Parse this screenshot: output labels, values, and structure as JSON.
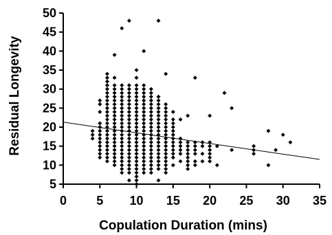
{
  "chart_data": {
    "type": "scatter",
    "title": "",
    "xlabel": "Copulation Duration (mins)",
    "ylabel": "Residual Longevity",
    "xlim": [
      0,
      35
    ],
    "ylim": [
      5,
      50
    ],
    "x_ticks": [
      0,
      5,
      10,
      15,
      20,
      25,
      30,
      35
    ],
    "y_ticks": [
      5,
      10,
      15,
      20,
      25,
      30,
      35,
      40,
      45,
      50
    ],
    "grid": false,
    "legend": "none",
    "point_color": "#000000",
    "trendline": {
      "type": "linear",
      "points": [
        [
          0,
          21.3
        ],
        [
          35,
          11.5
        ]
      ]
    },
    "points": [
      [
        4,
        17
      ],
      [
        4,
        18
      ],
      [
        4,
        19
      ],
      [
        5,
        12
      ],
      [
        5,
        13
      ],
      [
        5,
        14
      ],
      [
        5,
        15
      ],
      [
        5,
        16
      ],
      [
        5,
        17
      ],
      [
        5,
        18
      ],
      [
        5,
        19
      ],
      [
        5,
        20
      ],
      [
        5,
        21
      ],
      [
        5,
        24
      ],
      [
        5,
        26
      ],
      [
        5,
        27
      ],
      [
        6,
        11
      ],
      [
        6,
        12
      ],
      [
        6,
        13
      ],
      [
        6,
        14
      ],
      [
        6,
        15
      ],
      [
        6,
        16
      ],
      [
        6,
        17
      ],
      [
        6,
        18
      ],
      [
        6,
        19
      ],
      [
        6,
        20
      ],
      [
        6,
        21
      ],
      [
        6,
        22
      ],
      [
        6,
        23
      ],
      [
        6,
        24
      ],
      [
        6,
        25
      ],
      [
        6,
        26
      ],
      [
        6,
        27
      ],
      [
        6,
        28
      ],
      [
        6,
        29
      ],
      [
        6,
        30
      ],
      [
        6,
        31
      ],
      [
        6,
        32
      ],
      [
        6,
        33
      ],
      [
        6,
        34
      ],
      [
        7,
        10
      ],
      [
        7,
        11
      ],
      [
        7,
        12
      ],
      [
        7,
        13
      ],
      [
        7,
        14
      ],
      [
        7,
        15
      ],
      [
        7,
        16
      ],
      [
        7,
        17
      ],
      [
        7,
        18
      ],
      [
        7,
        19
      ],
      [
        7,
        20
      ],
      [
        7,
        21
      ],
      [
        7,
        22
      ],
      [
        7,
        23
      ],
      [
        7,
        24
      ],
      [
        7,
        25
      ],
      [
        7,
        26
      ],
      [
        7,
        27
      ],
      [
        7,
        28
      ],
      [
        7,
        29
      ],
      [
        7,
        30
      ],
      [
        7,
        31
      ],
      [
        7,
        33
      ],
      [
        7,
        39
      ],
      [
        8,
        8
      ],
      [
        8,
        9
      ],
      [
        8,
        10
      ],
      [
        8,
        11
      ],
      [
        8,
        12
      ],
      [
        8,
        13
      ],
      [
        8,
        14
      ],
      [
        8,
        15
      ],
      [
        8,
        16
      ],
      [
        8,
        17
      ],
      [
        8,
        18
      ],
      [
        8,
        19
      ],
      [
        8,
        20
      ],
      [
        8,
        21
      ],
      [
        8,
        22
      ],
      [
        8,
        23
      ],
      [
        8,
        24
      ],
      [
        8,
        25
      ],
      [
        8,
        26
      ],
      [
        8,
        27
      ],
      [
        8,
        28
      ],
      [
        8,
        29
      ],
      [
        8,
        30
      ],
      [
        8,
        31
      ],
      [
        8,
        46
      ],
      [
        9,
        6
      ],
      [
        9,
        8
      ],
      [
        9,
        9
      ],
      [
        9,
        10
      ],
      [
        9,
        11
      ],
      [
        9,
        12
      ],
      [
        9,
        13
      ],
      [
        9,
        14
      ],
      [
        9,
        15
      ],
      [
        9,
        16
      ],
      [
        9,
        17
      ],
      [
        9,
        18
      ],
      [
        9,
        19
      ],
      [
        9,
        20
      ],
      [
        9,
        21
      ],
      [
        9,
        22
      ],
      [
        9,
        23
      ],
      [
        9,
        24
      ],
      [
        9,
        25
      ],
      [
        9,
        26
      ],
      [
        9,
        27
      ],
      [
        9,
        28
      ],
      [
        9,
        29
      ],
      [
        9,
        30
      ],
      [
        9,
        31
      ],
      [
        9,
        48
      ],
      [
        10,
        5
      ],
      [
        10,
        6
      ],
      [
        10,
        7
      ],
      [
        10,
        8
      ],
      [
        10,
        9
      ],
      [
        10,
        10
      ],
      [
        10,
        11
      ],
      [
        10,
        12
      ],
      [
        10,
        13
      ],
      [
        10,
        14
      ],
      [
        10,
        15
      ],
      [
        10,
        16
      ],
      [
        10,
        17
      ],
      [
        10,
        18
      ],
      [
        10,
        19
      ],
      [
        10,
        20
      ],
      [
        10,
        21
      ],
      [
        10,
        22
      ],
      [
        10,
        23
      ],
      [
        10,
        24
      ],
      [
        10,
        25
      ],
      [
        10,
        26
      ],
      [
        10,
        27
      ],
      [
        10,
        28
      ],
      [
        10,
        29
      ],
      [
        10,
        30
      ],
      [
        10,
        31
      ],
      [
        10,
        33
      ],
      [
        10,
        35
      ],
      [
        11,
        8
      ],
      [
        11,
        9
      ],
      [
        11,
        10
      ],
      [
        11,
        11
      ],
      [
        11,
        12
      ],
      [
        11,
        13
      ],
      [
        11,
        14
      ],
      [
        11,
        15
      ],
      [
        11,
        16
      ],
      [
        11,
        17
      ],
      [
        11,
        18
      ],
      [
        11,
        19
      ],
      [
        11,
        20
      ],
      [
        11,
        21
      ],
      [
        11,
        22
      ],
      [
        11,
        23
      ],
      [
        11,
        24
      ],
      [
        11,
        25
      ],
      [
        11,
        26
      ],
      [
        11,
        27
      ],
      [
        11,
        28
      ],
      [
        11,
        29
      ],
      [
        11,
        30
      ],
      [
        11,
        31
      ],
      [
        11,
        40
      ],
      [
        12,
        8
      ],
      [
        12,
        9
      ],
      [
        12,
        10
      ],
      [
        12,
        11
      ],
      [
        12,
        12
      ],
      [
        12,
        13
      ],
      [
        12,
        14
      ],
      [
        12,
        15
      ],
      [
        12,
        16
      ],
      [
        12,
        17
      ],
      [
        12,
        18
      ],
      [
        12,
        19
      ],
      [
        12,
        20
      ],
      [
        12,
        21
      ],
      [
        12,
        22
      ],
      [
        12,
        23
      ],
      [
        12,
        24
      ],
      [
        12,
        25
      ],
      [
        12,
        26
      ],
      [
        12,
        27
      ],
      [
        12,
        28
      ],
      [
        12,
        29
      ],
      [
        12,
        30
      ],
      [
        13,
        6
      ],
      [
        13,
        9
      ],
      [
        13,
        10
      ],
      [
        13,
        11
      ],
      [
        13,
        12
      ],
      [
        13,
        13
      ],
      [
        13,
        14
      ],
      [
        13,
        15
      ],
      [
        13,
        16
      ],
      [
        13,
        17
      ],
      [
        13,
        18
      ],
      [
        13,
        19
      ],
      [
        13,
        20
      ],
      [
        13,
        21
      ],
      [
        13,
        22
      ],
      [
        13,
        23
      ],
      [
        13,
        24
      ],
      [
        13,
        25
      ],
      [
        13,
        26
      ],
      [
        13,
        27
      ],
      [
        13,
        28
      ],
      [
        13,
        48
      ],
      [
        14,
        8
      ],
      [
        14,
        9
      ],
      [
        14,
        10
      ],
      [
        14,
        11
      ],
      [
        14,
        12
      ],
      [
        14,
        13
      ],
      [
        14,
        14
      ],
      [
        14,
        15
      ],
      [
        14,
        16
      ],
      [
        14,
        17
      ],
      [
        14,
        18
      ],
      [
        14,
        19
      ],
      [
        14,
        20
      ],
      [
        14,
        21
      ],
      [
        14,
        22
      ],
      [
        14,
        23
      ],
      [
        14,
        24
      ],
      [
        14,
        25
      ],
      [
        14,
        26
      ],
      [
        14,
        34
      ],
      [
        15,
        10
      ],
      [
        15,
        12
      ],
      [
        15,
        13
      ],
      [
        15,
        14
      ],
      [
        15,
        15
      ],
      [
        15,
        16
      ],
      [
        15,
        17
      ],
      [
        15,
        18
      ],
      [
        15,
        19
      ],
      [
        15,
        20
      ],
      [
        15,
        21
      ],
      [
        15,
        22
      ],
      [
        15,
        24
      ],
      [
        16,
        11
      ],
      [
        16,
        13
      ],
      [
        16,
        14
      ],
      [
        16,
        15
      ],
      [
        16,
        16
      ],
      [
        16,
        17
      ],
      [
        16,
        22
      ],
      [
        17,
        9
      ],
      [
        17,
        10
      ],
      [
        17,
        11
      ],
      [
        17,
        12
      ],
      [
        17,
        13
      ],
      [
        17,
        14
      ],
      [
        17,
        15
      ],
      [
        17,
        16
      ],
      [
        17,
        23
      ],
      [
        18,
        10
      ],
      [
        18,
        11
      ],
      [
        18,
        13
      ],
      [
        18,
        14
      ],
      [
        18,
        15
      ],
      [
        18,
        16
      ],
      [
        18,
        33
      ],
      [
        19,
        11
      ],
      [
        19,
        13
      ],
      [
        19,
        15
      ],
      [
        19,
        16
      ],
      [
        20,
        11
      ],
      [
        20,
        12
      ],
      [
        20,
        13
      ],
      [
        20,
        14
      ],
      [
        20,
        15
      ],
      [
        20,
        16
      ],
      [
        20,
        23
      ],
      [
        21,
        10
      ],
      [
        21,
        15
      ],
      [
        22,
        29
      ],
      [
        23,
        14
      ],
      [
        23,
        25
      ],
      [
        26,
        13
      ],
      [
        26,
        14
      ],
      [
        26,
        15
      ],
      [
        28,
        10
      ],
      [
        28,
        19
      ],
      [
        29,
        14
      ],
      [
        30,
        18
      ],
      [
        31,
        16
      ]
    ]
  }
}
